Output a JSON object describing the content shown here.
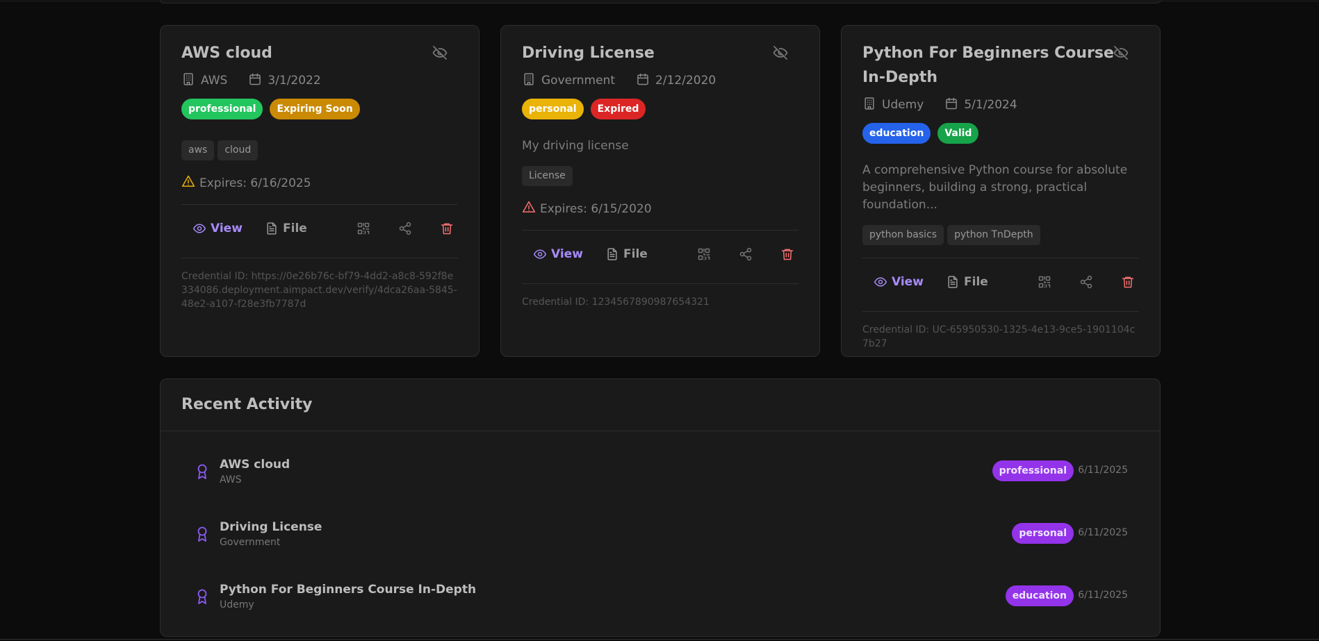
{
  "colors": {
    "accent": "#a78bfa",
    "danger": "#f87171",
    "warning": "#eab308"
  },
  "cards": [
    {
      "title": "AWS cloud",
      "issuer": "AWS",
      "date": "3/1/2022",
      "badges": [
        {
          "label": "professional",
          "color": "#22c55e"
        },
        {
          "label": "Expiring Soon",
          "color": "#ca8a04"
        }
      ],
      "description": "",
      "tags": [
        "aws",
        "cloud"
      ],
      "expires": "Expires: 6/16/2025",
      "expires_color": "#eab308",
      "view": "View",
      "file": "File",
      "credential": "Credential ID: https://0e26b76c-bf79-4dd2-a8c8-592f8e334086.deployment.aimpact.dev/verify/4dca26aa-5845-48e2-a107-f28e3fb7787d"
    },
    {
      "title": "Driving License",
      "issuer": "Government",
      "date": "2/12/2020",
      "badges": [
        {
          "label": "personal",
          "color": "#eab308"
        },
        {
          "label": "Expired",
          "color": "#dc2626"
        }
      ],
      "description": "My driving license",
      "tags": [
        "License"
      ],
      "expires": "Expires: 6/15/2020",
      "expires_color": "#f87171",
      "view": "View",
      "file": "File",
      "credential": "Credential ID: 1234567890987654321"
    },
    {
      "title": "Python For Beginners Course In-Depth",
      "issuer": "Udemy",
      "date": "5/1/2024",
      "badges": [
        {
          "label": "education",
          "color": "#2563eb"
        },
        {
          "label": "Valid",
          "color": "#16a34a"
        }
      ],
      "description": "A comprehensive Python course for absolute beginners, building a strong, practical foundation...",
      "tags": [
        "python basics",
        "python TnDepth"
      ],
      "expires": "",
      "view": "View",
      "file": "File",
      "credential": "Credential ID: UC-65950530-1325-4e13-9ce5-1901104c7b27"
    }
  ],
  "activity": {
    "title": "Recent Activity",
    "items": [
      {
        "name": "AWS cloud",
        "issuer": "AWS",
        "category": "professional",
        "date": "6/11/2025"
      },
      {
        "name": "Driving License",
        "issuer": "Government",
        "category": "personal",
        "date": "6/11/2025"
      },
      {
        "name": "Python For Beginners Course In-Depth",
        "issuer": "Udemy",
        "category": "education",
        "date": "6/11/2025"
      }
    ]
  }
}
